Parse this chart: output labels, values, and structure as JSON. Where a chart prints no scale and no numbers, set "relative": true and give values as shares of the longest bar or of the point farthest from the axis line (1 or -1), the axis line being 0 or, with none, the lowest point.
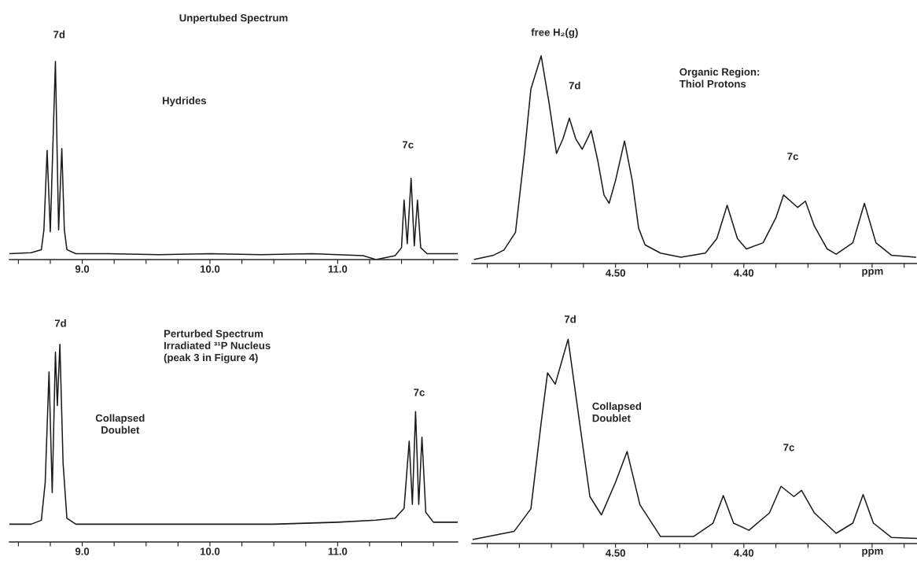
{
  "chart_data": [
    {
      "type": "line",
      "title": "Unpertubed Spectrum",
      "relative": true,
      "xlim": [
        8.43,
        11.94
      ],
      "xticks": [
        {
          "value": 8.5,
          "label": null
        },
        {
          "value": 8.75,
          "label": null
        },
        {
          "value": 9,
          "label": "9.0"
        },
        {
          "value": 9.25,
          "label": null
        },
        {
          "value": 9.5,
          "label": null
        },
        {
          "value": 9.75,
          "label": null
        },
        {
          "value": 10,
          "label": "10.0"
        },
        {
          "value": 10.25,
          "label": null
        },
        {
          "value": 10.5,
          "label": null
        },
        {
          "value": 10.75,
          "label": null
        },
        {
          "value": 11,
          "label": "11.0"
        },
        {
          "value": 11.25,
          "label": null
        },
        {
          "value": 11.5,
          "label": null
        },
        {
          "value": 11.75,
          "label": null
        }
      ],
      "series": [
        {
          "color": "#1a1a1a",
          "x": [
            8.43,
            8.6,
            8.68,
            8.7,
            8.725,
            8.75,
            8.79,
            8.815,
            8.84,
            8.86,
            8.88,
            8.95,
            9.2,
            9.6,
            10.0,
            10.4,
            10.8,
            11.2,
            11.3,
            11.45,
            11.5,
            11.52,
            11.545,
            11.575,
            11.6,
            11.625,
            11.65,
            11.7,
            11.94
          ],
          "values": [
            0.03,
            0.035,
            0.05,
            0.15,
            0.55,
            0.14,
            1.0,
            0.15,
            0.56,
            0.15,
            0.05,
            0.03,
            0.03,
            0.025,
            0.03,
            0.025,
            0.03,
            0.02,
            0.0,
            0.02,
            0.06,
            0.3,
            0.08,
            0.41,
            0.07,
            0.3,
            0.06,
            0.03,
            0.03
          ]
        }
      ],
      "annotations": [
        "7d",
        "7c",
        "Hydrides"
      ]
    },
    {
      "type": "line",
      "relative": true,
      "xlim": [
        4.612,
        4.265
      ],
      "xlabel": "ppm",
      "xticks": [
        {
          "value": 4.6,
          "label": null
        },
        {
          "value": 4.575,
          "label": null
        },
        {
          "value": 4.55,
          "label": null
        },
        {
          "value": 4.525,
          "label": null
        },
        {
          "value": 4.5,
          "label": "4.50"
        },
        {
          "value": 4.475,
          "label": null
        },
        {
          "value": 4.45,
          "label": null
        },
        {
          "value": 4.425,
          "label": null
        },
        {
          "value": 4.4,
          "label": "4.40"
        },
        {
          "value": 4.375,
          "label": null
        },
        {
          "value": 4.35,
          "label": null
        },
        {
          "value": 4.325,
          "label": null
        },
        {
          "value": 4.3,
          "label": null
        },
        {
          "value": 4.275,
          "label": null
        }
      ],
      "series": [
        {
          "color": "#1a1a1a",
          "x": [
            4.61,
            4.595,
            4.587,
            4.578,
            4.571,
            4.566,
            4.558,
            4.552,
            4.546,
            4.541,
            4.536,
            4.531,
            4.526,
            4.522,
            4.519,
            4.514,
            4.509,
            4.505,
            4.5,
            4.493,
            4.487,
            4.482,
            4.477,
            4.465,
            4.449,
            4.43,
            4.421,
            4.413,
            4.405,
            4.398,
            4.385,
            4.375,
            4.369,
            4.358,
            4.352,
            4.345,
            4.335,
            4.328,
            4.315,
            4.306,
            4.297,
            4.285,
            4.266
          ],
          "values": [
            0.02,
            0.04,
            0.065,
            0.15,
            0.53,
            0.84,
            1.0,
            0.78,
            0.53,
            0.6,
            0.7,
            0.6,
            0.55,
            0.6,
            0.64,
            0.5,
            0.33,
            0.29,
            0.4,
            0.59,
            0.4,
            0.17,
            0.09,
            0.05,
            0.03,
            0.05,
            0.12,
            0.28,
            0.12,
            0.07,
            0.1,
            0.22,
            0.33,
            0.27,
            0.3,
            0.18,
            0.07,
            0.045,
            0.1,
            0.29,
            0.1,
            0.04,
            0.03
          ]
        }
      ],
      "annotations": [
        "free H₂(g)",
        "7d",
        "7c",
        "Organic Region:\nThiol Protons"
      ]
    },
    {
      "type": "line",
      "relative": true,
      "xlim": [
        8.43,
        11.94
      ],
      "xticks": [
        {
          "value": 8.5,
          "label": null
        },
        {
          "value": 8.75,
          "label": null
        },
        {
          "value": 9,
          "label": "9.0"
        },
        {
          "value": 9.25,
          "label": null
        },
        {
          "value": 9.5,
          "label": null
        },
        {
          "value": 9.75,
          "label": null
        },
        {
          "value": 10,
          "label": "10.0"
        },
        {
          "value": 10.25,
          "label": null
        },
        {
          "value": 10.5,
          "label": null
        },
        {
          "value": 10.75,
          "label": null
        },
        {
          "value": 11,
          "label": "11.0"
        },
        {
          "value": 11.25,
          "label": null
        },
        {
          "value": 11.5,
          "label": null
        },
        {
          "value": 11.75,
          "label": null
        }
      ],
      "series": [
        {
          "color": "#1a1a1a",
          "x": [
            8.43,
            8.6,
            8.68,
            8.71,
            8.74,
            8.765,
            8.79,
            8.805,
            8.825,
            8.85,
            8.88,
            8.95,
            9.5,
            10.0,
            10.5,
            11.0,
            11.3,
            11.45,
            11.52,
            11.56,
            11.585,
            11.61,
            11.635,
            11.66,
            11.69,
            11.75,
            11.94
          ],
          "values": [
            0.09,
            0.09,
            0.11,
            0.3,
            0.86,
            0.25,
            0.96,
            0.69,
            1.0,
            0.4,
            0.12,
            0.09,
            0.09,
            0.09,
            0.09,
            0.1,
            0.11,
            0.12,
            0.17,
            0.51,
            0.19,
            0.66,
            0.19,
            0.53,
            0.15,
            0.1,
            0.1
          ]
        }
      ],
      "annotations": [
        "7d",
        "7c",
        "Perturbed Spectrum\nIrradiated ³¹P Nucleus\n(peak 3 in Figure 4)",
        "Collapsed\nDoublet"
      ]
    },
    {
      "type": "line",
      "relative": true,
      "xlim": [
        4.612,
        4.265
      ],
      "xlabel": "ppm",
      "xticks": [
        {
          "value": 4.6,
          "label": null
        },
        {
          "value": 4.575,
          "label": null
        },
        {
          "value": 4.55,
          "label": null
        },
        {
          "value": 4.525,
          "label": null
        },
        {
          "value": 4.5,
          "label": "4.50"
        },
        {
          "value": 4.475,
          "label": null
        },
        {
          "value": 4.45,
          "label": null
        },
        {
          "value": 4.425,
          "label": null
        },
        {
          "value": 4.4,
          "label": "4.40"
        },
        {
          "value": 4.375,
          "label": null
        },
        {
          "value": 4.35,
          "label": null
        },
        {
          "value": 4.325,
          "label": null
        },
        {
          "value": 4.3,
          "label": null
        },
        {
          "value": 4.275,
          "label": null
        }
      ],
      "series": [
        {
          "color": "#1a1a1a",
          "x": [
            4.611,
            4.579,
            4.566,
            4.558,
            4.553,
            4.547,
            4.537,
            4.528,
            4.52,
            4.511,
            4.5,
            4.491,
            4.481,
            4.465,
            4.439,
            4.424,
            4.416,
            4.408,
            4.396,
            4.38,
            4.371,
            4.361,
            4.355,
            4.345,
            4.328,
            4.315,
            4.307,
            4.299,
            4.285,
            4.265
          ],
          "values": [
            0.02,
            0.06,
            0.17,
            0.59,
            0.835,
            0.78,
            1.0,
            0.59,
            0.23,
            0.14,
            0.3,
            0.45,
            0.19,
            0.035,
            0.035,
            0.1,
            0.235,
            0.1,
            0.065,
            0.15,
            0.28,
            0.23,
            0.26,
            0.15,
            0.05,
            0.1,
            0.24,
            0.1,
            0.03,
            0.025
          ]
        }
      ],
      "annotations": [
        "7d",
        "Collapsed\nDoublet",
        "7c"
      ]
    }
  ]
}
